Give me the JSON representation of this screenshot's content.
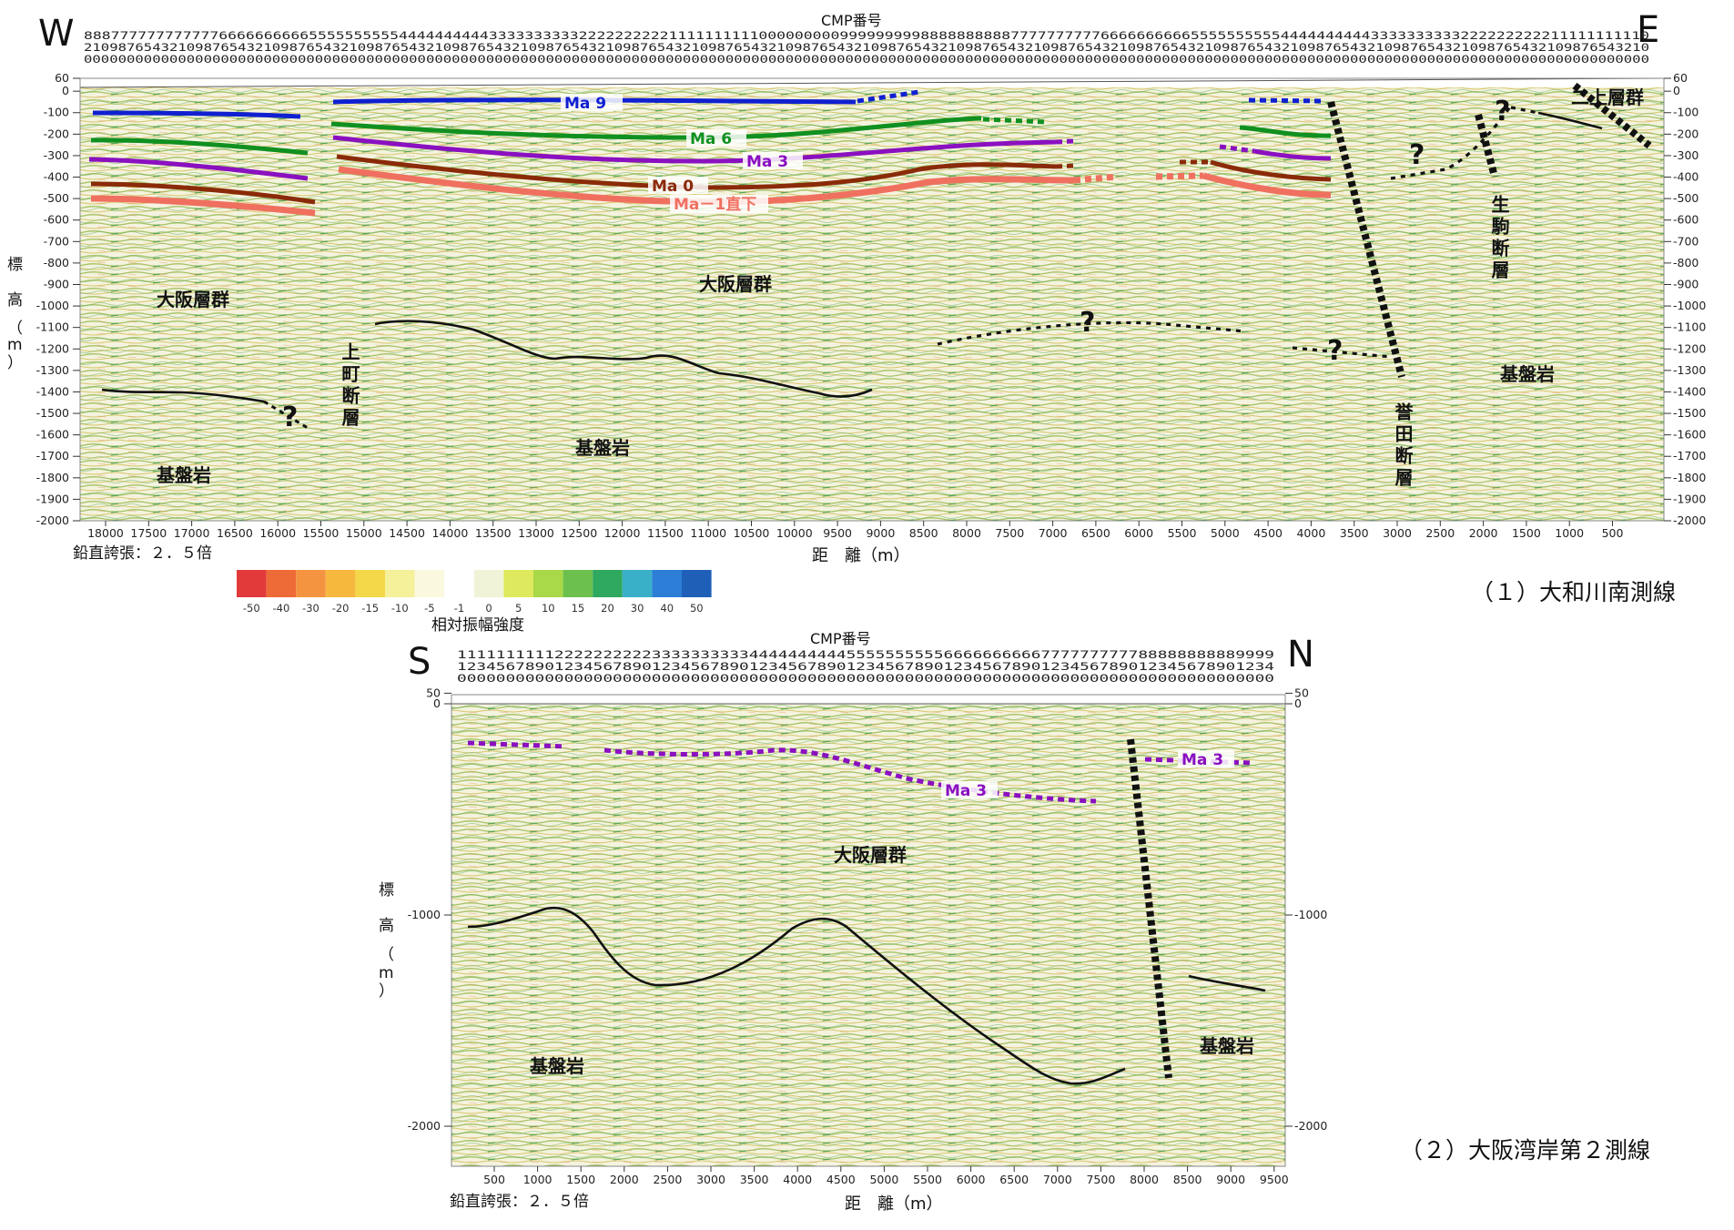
{
  "panel1": {
    "dir_left": "W",
    "dir_right": "E",
    "cmp_title": "CMP番号",
    "cmp_rows": [
      "888777777777777666666666655555555554444444444333333333322222222221111111111000000000999999999888888888877777777776666666666555555555544444444443333333333222222222211111111110",
      "210987654321098765432109876543210987654321098765432109876543210987654321098765432109876543210987654321098765432109876543210987654321098765432109876543210987654321098765432109876543210",
      "000000000000000000000000000000000000000000000000000000000000000000000000000000000000000000000000000000000000000000000000000000000000000000000000000000000000000000000000000000000000000"
    ],
    "y_axis_label": [
      "標",
      "高",
      "（",
      "m",
      "）"
    ],
    "y_ticks": [
      "60",
      "0",
      "-100",
      "-200",
      "-300",
      "-400",
      "-500",
      "-600",
      "-700",
      "-800",
      "-900",
      "-1000",
      "-1100",
      "-1200",
      "-1300",
      "-1400",
      "-1500",
      "-1600",
      "-1700",
      "-1800",
      "-1900",
      "-2000"
    ],
    "x_ticks": [
      "18000",
      "17500",
      "17000",
      "16500",
      "16000",
      "15500",
      "15000",
      "14500",
      "14000",
      "13500",
      "13000",
      "12500",
      "12000",
      "11500",
      "11000",
      "10500",
      "10000",
      "9500",
      "9000",
      "8500",
      "8000",
      "7500",
      "7000",
      "6500",
      "6000",
      "5500",
      "5000",
      "4500",
      "4000",
      "3500",
      "3000",
      "2500",
      "2000",
      "1500",
      "1000",
      "500"
    ],
    "x_axis_label": "距　離（m）",
    "exaggeration": "鉛直誇張：２．５倍",
    "labels": {
      "osaka_group_w": "大阪層群",
      "osaka_group_c": "大阪層群",
      "basement_w": "基盤岩",
      "basement_c": "基盤岩",
      "basement_e": "基盤岩",
      "uemachi_fault": "上町断層",
      "konda_fault": "誉田断層",
      "ikoma_fault": "生駒断層",
      "nijo_group": "二上層群"
    },
    "horizons": {
      "ma9": {
        "label": "Ma 9",
        "color": "#1020d0"
      },
      "ma6": {
        "label": "Ma 6",
        "color": "#109020"
      },
      "ma3": {
        "label": "Ma 3",
        "color": "#8a10c0"
      },
      "ma0": {
        "label": "Ma 0",
        "color": "#8a2a08"
      },
      "ma_1": {
        "label": "Ma－1直下",
        "color": "#f07060"
      }
    },
    "question_mark": "?",
    "caption": "（１）大和川南測線"
  },
  "colorbar": {
    "ticks": [
      "-50",
      "-40",
      "-30",
      "-20",
      "-15",
      "-10",
      "-5",
      "-1",
      "0",
      "5",
      "10",
      "15",
      "20",
      "30",
      "40",
      "50"
    ],
    "colors": [
      "#e23a3a",
      "#ee6a36",
      "#f49440",
      "#f7b83e",
      "#f5d84a",
      "#f5f09a",
      "#fbf8e0",
      "#ffffff",
      "#f1f3d8",
      "#dfe95e",
      "#a9d848",
      "#6cc14e",
      "#2fa860",
      "#3ab0c8",
      "#2c7ed6",
      "#1f5fb8"
    ],
    "label": "相対振幅強度"
  },
  "panel2": {
    "dir_left": "S",
    "dir_right": "N",
    "cmp_title": "CMP番号",
    "cmp_rows": [
      "111111111122222222223333333333444444444455555555556666666666777777777788888888889999",
      "123456789012345678901234567890123456789012345678901234567890123456789012345678901234",
      "000000000000000000000000000000000000000000000000000000000000000000000000000000000000"
    ],
    "y_axis_label": [
      "標",
      "高",
      "（",
      "m",
      "）"
    ],
    "y_ticks": [
      "50",
      "0",
      "-1000",
      "-2000"
    ],
    "x_ticks": [
      "500",
      "1000",
      "1500",
      "2000",
      "2500",
      "3000",
      "3500",
      "4000",
      "4500",
      "5000",
      "5500",
      "6000",
      "6500",
      "7000",
      "7500",
      "8000",
      "8500",
      "9000",
      "9500"
    ],
    "x_axis_label": "距　離（m）",
    "exaggeration": "鉛直誇張：２．５倍",
    "labels": {
      "osaka_group": "大阪層群",
      "basement_s": "基盤岩",
      "basement_n": "基盤岩"
    },
    "horizons": {
      "ma3": {
        "label": "Ma 3",
        "color": "#8a10c0"
      }
    },
    "caption": "（２）大阪湾岸第２測線"
  }
}
